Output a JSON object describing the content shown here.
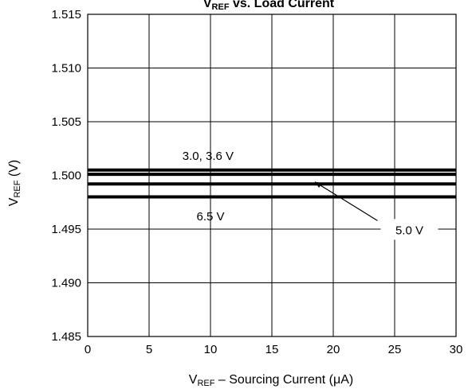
{
  "chart_data": {
    "type": "line",
    "title": {
      "main": "V",
      "sub": "REF",
      "rest": " vs. Load Current"
    },
    "xlabel": {
      "pre": "V",
      "sub": "REF",
      "post": " – Sourcing Current (μA)"
    },
    "ylabel": {
      "main": "V",
      "sub": "REF",
      "post": " (V)"
    },
    "xlim": [
      0,
      30
    ],
    "ylim": [
      1.485,
      1.515
    ],
    "x_ticks": [
      "0",
      "5",
      "10",
      "15",
      "20",
      "25",
      "30"
    ],
    "y_ticks": [
      "1.515",
      "1.510",
      "1.505",
      "1.500",
      "1.495",
      "1.490",
      "1.485"
    ],
    "grid": true,
    "series": [
      {
        "x": [
          0,
          30
        ],
        "y": [
          1.5005,
          1.5005
        ]
      },
      {
        "x": [
          0,
          30
        ],
        "y": [
          1.5001,
          1.5001
        ]
      },
      {
        "x": [
          0,
          30
        ],
        "y": [
          1.4992,
          1.4992
        ]
      },
      {
        "x": [
          0,
          30
        ],
        "y": [
          1.498,
          1.498
        ]
      }
    ],
    "annotations": [
      {
        "text": "3.0, 3.6 V",
        "x": 9.8,
        "y": 1.5018
      },
      {
        "text": "6.5 V",
        "x": 10.0,
        "y": 1.4962
      },
      {
        "text": "5.0 V",
        "x": 26.2,
        "y": 1.4949,
        "arrow_to": [
          18.5,
          1.4994
        ]
      }
    ]
  }
}
